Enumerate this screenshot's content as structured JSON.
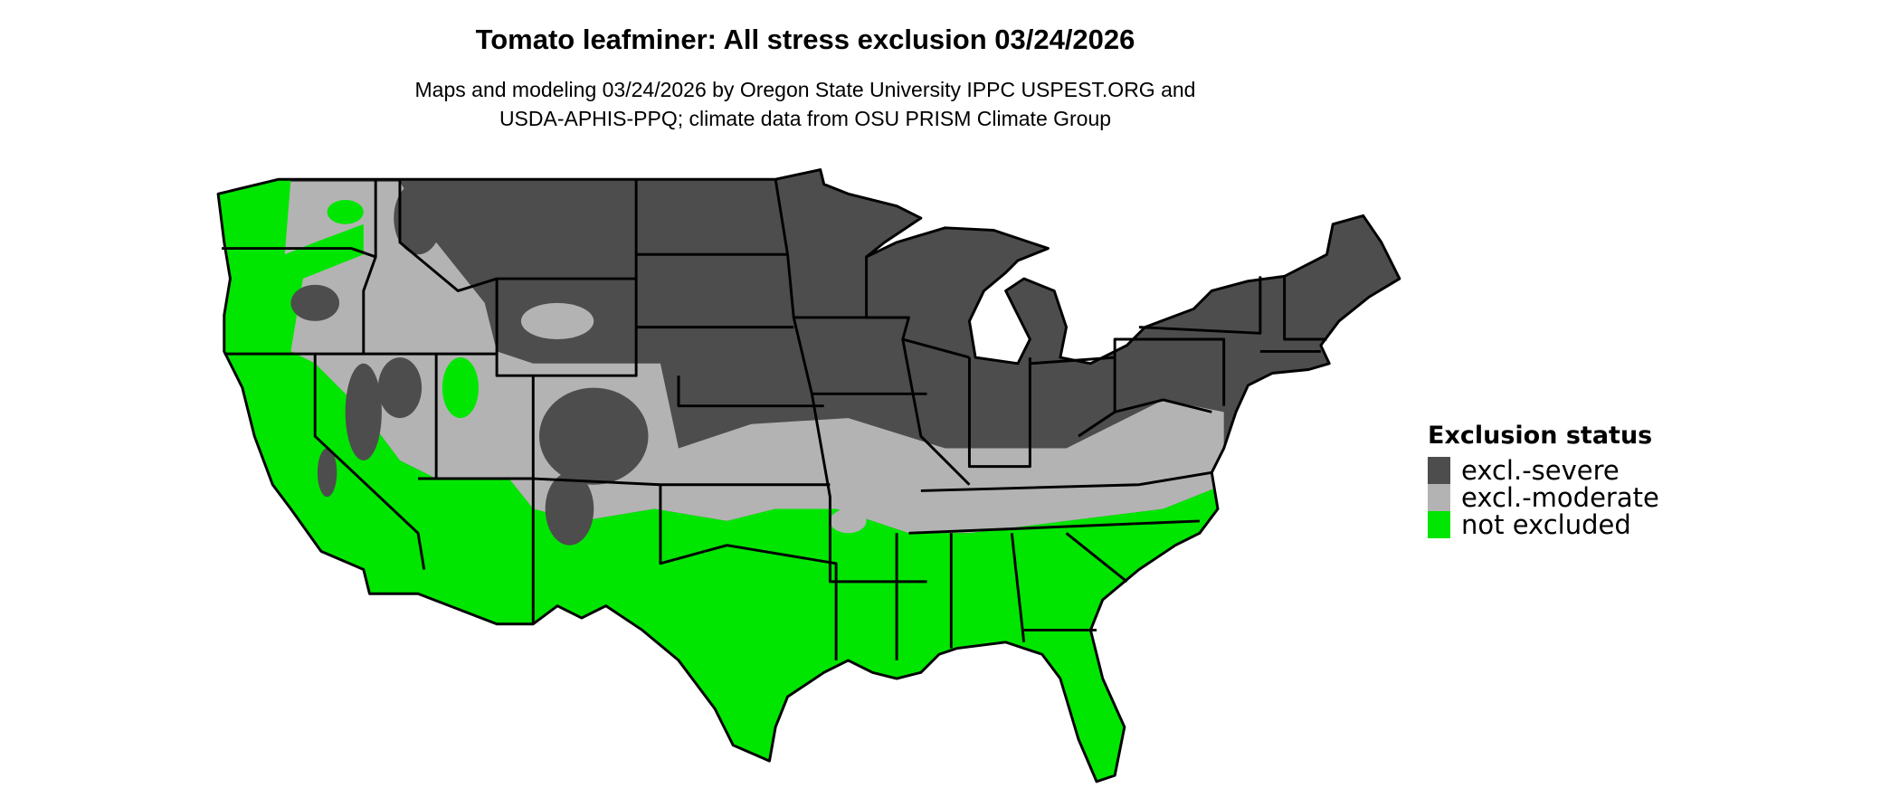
{
  "title": "Tomato leafminer: All stress exclusion 03/24/2026",
  "subtitle_lines": [
    "Maps and modeling 03/24/2026 by Oregon State University IPPC USPEST.ORG and",
    "USDA-APHIS-PPQ; climate data from OSU PRISM Climate Group"
  ],
  "legend": {
    "title": "Exclusion status",
    "items": [
      {
        "label": "excl.-severe",
        "color": "#4d4d4d"
      },
      {
        "label": "excl.-moderate",
        "color": "#b3b3b3"
      },
      {
        "label": "not excluded",
        "color": "#00e600"
      }
    ]
  }
}
